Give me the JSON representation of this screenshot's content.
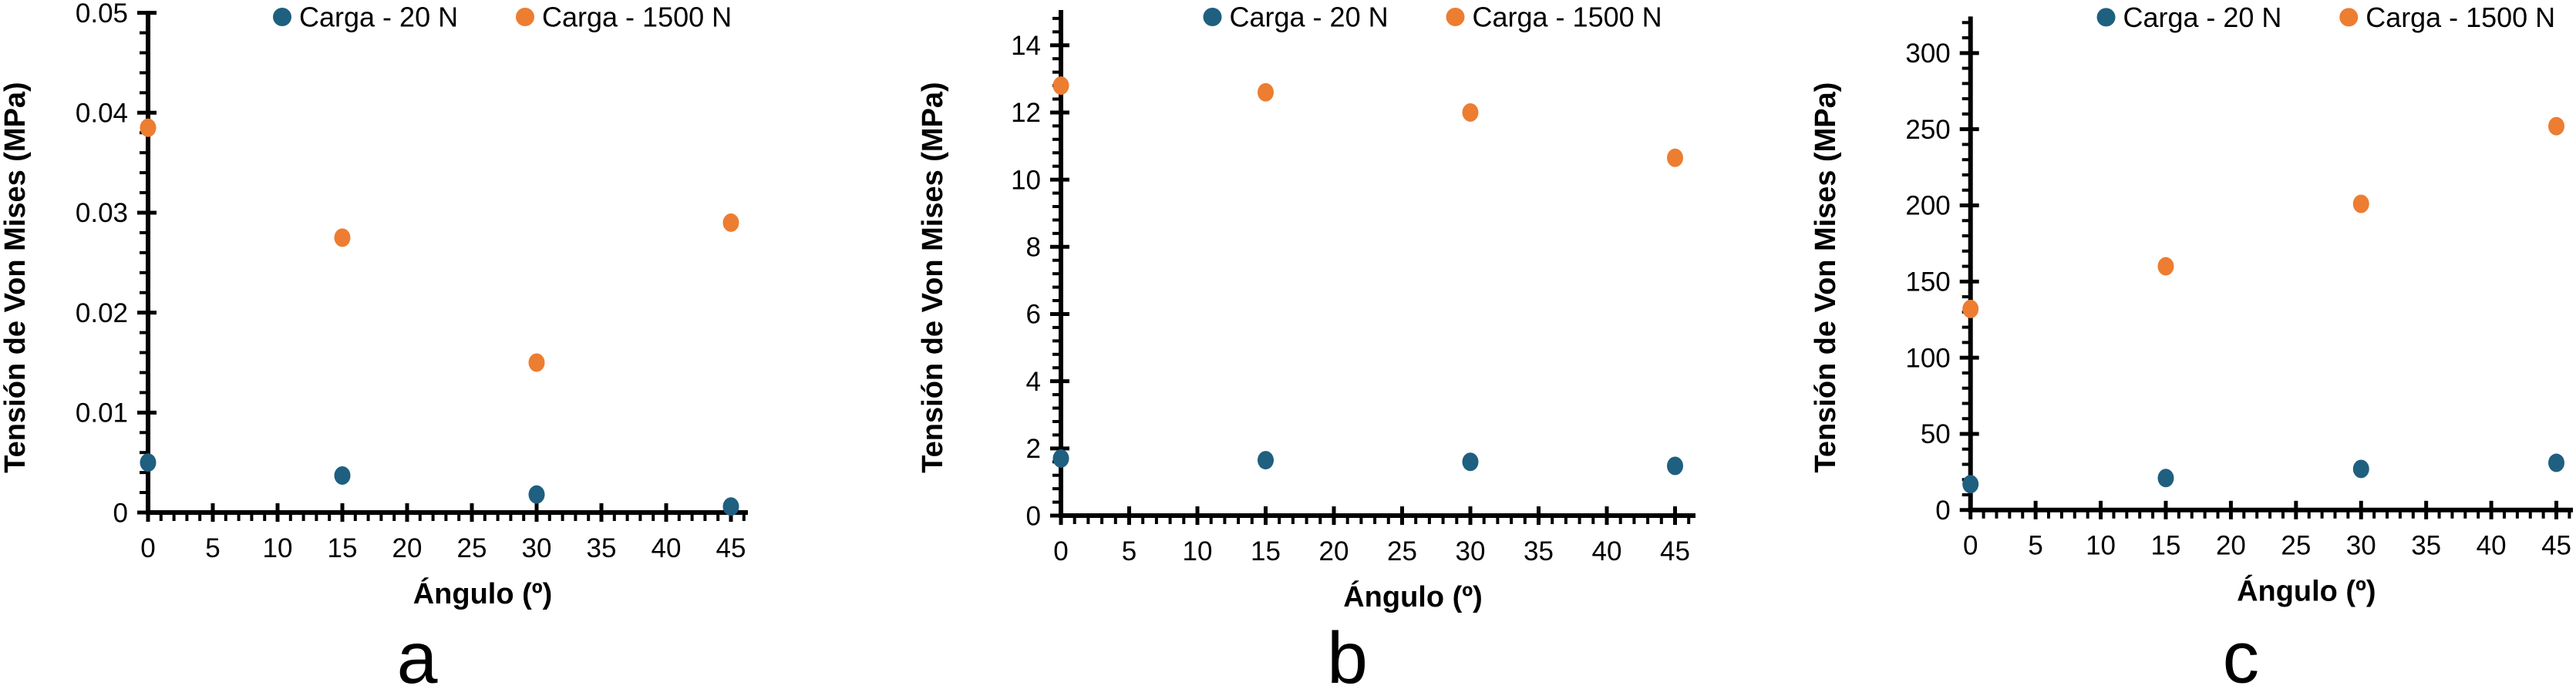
{
  "page": {
    "background": "#ffffff"
  },
  "colors": {
    "axis": "#000000",
    "carga_20": "#1F5F80",
    "carga_1500": "#ED7D31"
  },
  "legend": {
    "position": "top",
    "items": [
      {
        "label": "Carga - 20 N",
        "color": "#1F5F80",
        "marker": "circle"
      },
      {
        "label": "Carga - 1500 N",
        "color": "#ED7D31",
        "marker": "circle"
      }
    ]
  },
  "chart_data": [
    {
      "id": "a",
      "type": "scatter",
      "sublabel": "a",
      "xlabel": "Ángulo (º)",
      "ylabel": "Tensión de Von Mises (MPa)",
      "x": [
        0,
        15,
        30,
        45
      ],
      "series": [
        {
          "name": "Carga - 20 N",
          "color": "#1F5F80",
          "values": [
            0.005,
            0.0037,
            0.0018,
            0.0006
          ]
        },
        {
          "name": "Carga - 1500 N",
          "color": "#ED7D31",
          "values": [
            0.0385,
            0.0275,
            0.015,
            0.029
          ]
        }
      ],
      "xlim": [
        0,
        46.3
      ],
      "ylim": [
        0,
        0.0502
      ],
      "x_major_step": 5,
      "x_minor_step": 1,
      "y_major_step": 0.01,
      "y_minor_step": 0.002,
      "y_tick_max": 0.05,
      "y_decimals": 2,
      "grid": false,
      "legend_position": "top"
    },
    {
      "id": "b",
      "type": "scatter",
      "sublabel": "b",
      "xlabel": "Ángulo (º)",
      "ylabel": "Tensión de Von Mises (MPa)",
      "x": [
        0,
        15,
        30,
        45
      ],
      "series": [
        {
          "name": "Carga - 20 N",
          "color": "#1F5F80",
          "values": [
            1.7,
            1.65,
            1.6,
            1.48
          ]
        },
        {
          "name": "Carga - 1500 N",
          "color": "#ED7D31",
          "values": [
            12.8,
            12.6,
            12.0,
            10.65
          ]
        }
      ],
      "xlim": [
        0,
        46.5
      ],
      "ylim": [
        0,
        15.05
      ],
      "x_major_step": 5,
      "x_minor_step": 1,
      "y_major_step": 2,
      "y_minor_step": 0.4,
      "y_tick_max": 14,
      "y_decimals": 0,
      "grid": false,
      "legend_position": "top"
    },
    {
      "id": "c",
      "type": "scatter",
      "sublabel": "c",
      "xlabel": "Ángulo (º)",
      "ylabel": "Tensión de Von Mises (MPa)",
      "x": [
        0,
        15,
        30,
        45
      ],
      "series": [
        {
          "name": "Carga - 20 N",
          "color": "#1F5F80",
          "values": [
            17,
            21,
            27,
            31
          ]
        },
        {
          "name": "Carga - 1500 N",
          "color": "#ED7D31",
          "values": [
            132,
            160,
            201,
            252
          ]
        }
      ],
      "xlim": [
        0,
        46.3
      ],
      "ylim": [
        0,
        324
      ],
      "x_major_step": 5,
      "x_minor_step": 1,
      "y_major_step": 50,
      "y_minor_step": 10,
      "y_tick_max": 300,
      "y_decimals": 0,
      "grid": false,
      "legend_position": "top"
    }
  ]
}
